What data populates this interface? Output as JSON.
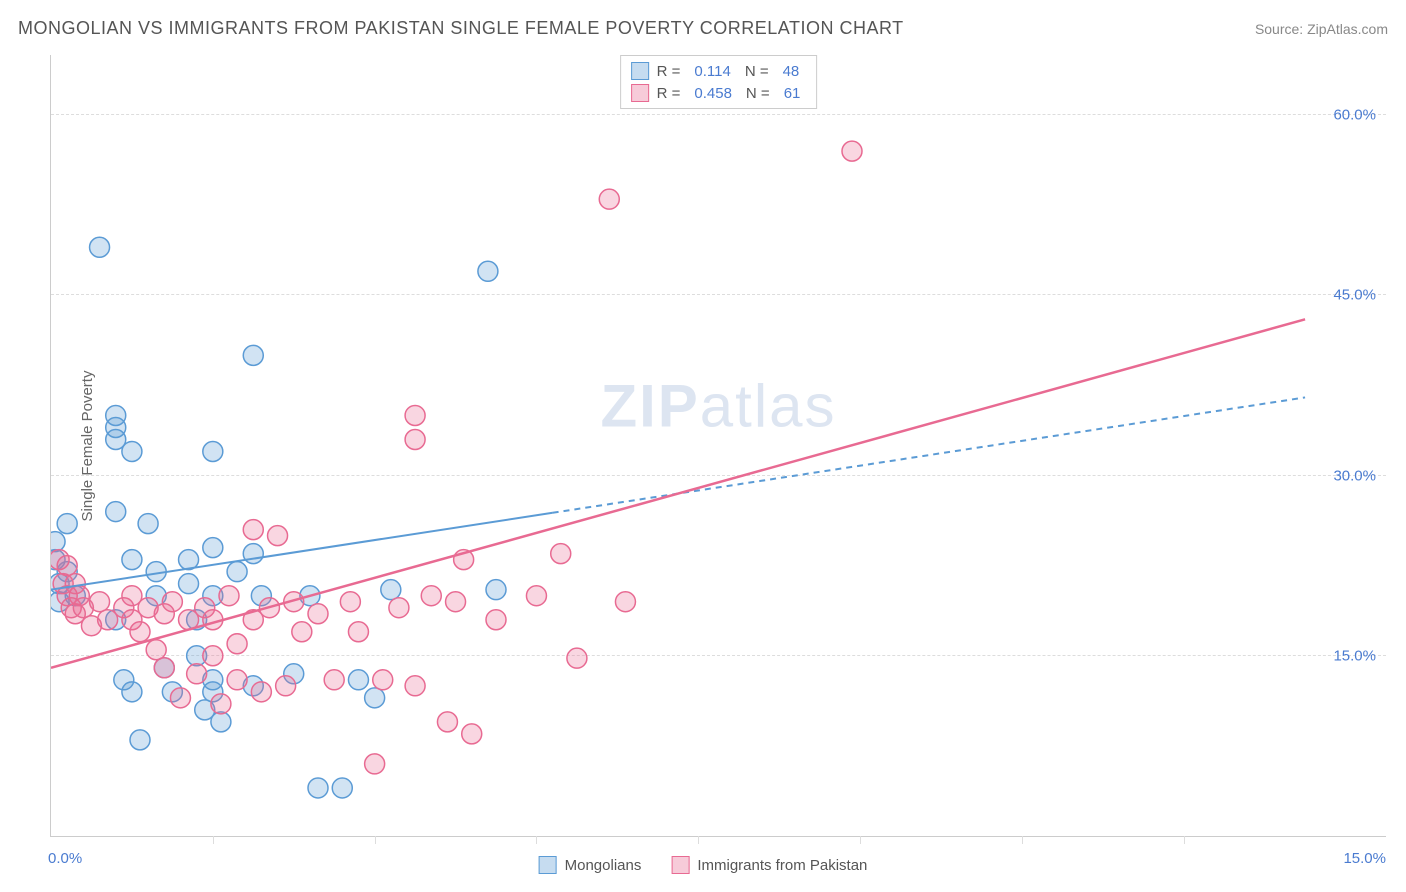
{
  "title": "MONGOLIAN VS IMMIGRANTS FROM PAKISTAN SINGLE FEMALE POVERTY CORRELATION CHART",
  "source": "Source: ZipAtlas.com",
  "yaxis_label": "Single Female Poverty",
  "watermark": {
    "bold": "ZIP",
    "rest": "atlas"
  },
  "chart": {
    "type": "scatter",
    "background_color": "#ffffff",
    "grid_color": "#dddddd",
    "axis_color": "#cccccc",
    "tick_text_color": "#4a7bd0",
    "x_range": [
      0.0,
      16.5
    ],
    "y_range": [
      0.0,
      65.0
    ],
    "y_ticks": [
      15.0,
      30.0,
      45.0,
      60.0
    ],
    "y_tick_labels": [
      "15.0%",
      "30.0%",
      "45.0%",
      "60.0%"
    ],
    "x_major_ticks": [
      0.0,
      15.0
    ],
    "x_major_labels": [
      "0.0%",
      "15.0%"
    ],
    "x_minor_ticks": [
      2.0,
      4.0,
      6.0,
      8.0,
      10.0,
      12.0,
      14.0
    ],
    "marker_radius": 10,
    "marker_stroke_width": 1.5,
    "marker_fill_opacity": 0.28,
    "series": [
      {
        "name": "Mongolians",
        "color": "#5b9bd5",
        "fill": "#5b9bd5",
        "R": "0.114",
        "N": "48",
        "trend": {
          "x1": 0.0,
          "y1": 20.5,
          "x2": 15.5,
          "y2": 36.5,
          "style": "solid-then-dashed",
          "dash_from_x": 6.2,
          "width": 2
        },
        "points": [
          [
            0.05,
            24.5
          ],
          [
            0.05,
            23.0
          ],
          [
            0.1,
            21.0
          ],
          [
            0.1,
            19.5
          ],
          [
            0.2,
            26.0
          ],
          [
            0.2,
            22.0
          ],
          [
            0.3,
            20.0
          ],
          [
            0.6,
            49.0
          ],
          [
            0.8,
            34.0
          ],
          [
            0.8,
            33.0
          ],
          [
            0.8,
            35.0
          ],
          [
            0.8,
            27.0
          ],
          [
            0.8,
            18.0
          ],
          [
            0.9,
            13.0
          ],
          [
            1.0,
            32.0
          ],
          [
            1.0,
            23.0
          ],
          [
            1.0,
            12.0
          ],
          [
            1.1,
            8.0
          ],
          [
            1.2,
            26.0
          ],
          [
            1.3,
            22.0
          ],
          [
            1.3,
            20.0
          ],
          [
            1.4,
            14.0
          ],
          [
            1.5,
            12.0
          ],
          [
            1.7,
            23.0
          ],
          [
            1.7,
            21.0
          ],
          [
            1.8,
            18.0
          ],
          [
            1.8,
            15.0
          ],
          [
            1.9,
            10.5
          ],
          [
            2.0,
            32.0
          ],
          [
            2.0,
            24.0
          ],
          [
            2.0,
            20.0
          ],
          [
            2.0,
            13.0
          ],
          [
            2.0,
            12.0
          ],
          [
            2.1,
            9.5
          ],
          [
            2.3,
            22.0
          ],
          [
            2.5,
            40.0
          ],
          [
            2.5,
            23.5
          ],
          [
            2.5,
            12.5
          ],
          [
            2.6,
            20.0
          ],
          [
            3.0,
            13.5
          ],
          [
            3.2,
            20.0
          ],
          [
            3.3,
            4.0
          ],
          [
            3.6,
            4.0
          ],
          [
            3.8,
            13.0
          ],
          [
            4.0,
            11.5
          ],
          [
            4.2,
            20.5
          ],
          [
            5.4,
            47.0
          ],
          [
            5.5,
            20.5
          ]
        ]
      },
      {
        "name": "Immigrants from Pakistan",
        "color": "#e86a92",
        "fill": "#e86a92",
        "R": "0.458",
        "N": "61",
        "trend": {
          "x1": 0.0,
          "y1": 14.0,
          "x2": 15.5,
          "y2": 43.0,
          "style": "solid",
          "width": 2.5
        },
        "points": [
          [
            0.1,
            23.0
          ],
          [
            0.15,
            21.0
          ],
          [
            0.2,
            22.5
          ],
          [
            0.2,
            20.0
          ],
          [
            0.25,
            19.0
          ],
          [
            0.3,
            21.0
          ],
          [
            0.3,
            18.5
          ],
          [
            0.35,
            20.0
          ],
          [
            0.4,
            19.0
          ],
          [
            0.5,
            17.5
          ],
          [
            0.6,
            19.5
          ],
          [
            0.7,
            18.0
          ],
          [
            0.9,
            19.0
          ],
          [
            1.0,
            20.0
          ],
          [
            1.0,
            18.0
          ],
          [
            1.1,
            17.0
          ],
          [
            1.2,
            19.0
          ],
          [
            1.3,
            15.5
          ],
          [
            1.4,
            18.5
          ],
          [
            1.4,
            14.0
          ],
          [
            1.5,
            19.5
          ],
          [
            1.6,
            11.5
          ],
          [
            1.7,
            18.0
          ],
          [
            1.8,
            13.5
          ],
          [
            1.9,
            19.0
          ],
          [
            2.0,
            15.0
          ],
          [
            2.0,
            18.0
          ],
          [
            2.1,
            11.0
          ],
          [
            2.2,
            20.0
          ],
          [
            2.3,
            13.0
          ],
          [
            2.3,
            16.0
          ],
          [
            2.5,
            25.5
          ],
          [
            2.5,
            18.0
          ],
          [
            2.6,
            12.0
          ],
          [
            2.7,
            19.0
          ],
          [
            2.8,
            25.0
          ],
          [
            2.9,
            12.5
          ],
          [
            3.0,
            19.5
          ],
          [
            3.1,
            17.0
          ],
          [
            3.3,
            18.5
          ],
          [
            3.5,
            13.0
          ],
          [
            3.7,
            19.5
          ],
          [
            3.8,
            17.0
          ],
          [
            4.0,
            6.0
          ],
          [
            4.1,
            13.0
          ],
          [
            4.3,
            19.0
          ],
          [
            4.5,
            35.0
          ],
          [
            4.5,
            33.0
          ],
          [
            4.5,
            12.5
          ],
          [
            4.7,
            20.0
          ],
          [
            4.9,
            9.5
          ],
          [
            5.0,
            19.5
          ],
          [
            5.1,
            23.0
          ],
          [
            5.2,
            8.5
          ],
          [
            5.5,
            18.0
          ],
          [
            6.0,
            20.0
          ],
          [
            6.3,
            23.5
          ],
          [
            6.5,
            14.8
          ],
          [
            6.9,
            53.0
          ],
          [
            7.1,
            19.5
          ],
          [
            9.9,
            57.0
          ]
        ]
      }
    ]
  },
  "legend_bottom": [
    {
      "label": "Mongolians",
      "color": "#5b9bd5"
    },
    {
      "label": "Immigrants from Pakistan",
      "color": "#e86a92"
    }
  ]
}
